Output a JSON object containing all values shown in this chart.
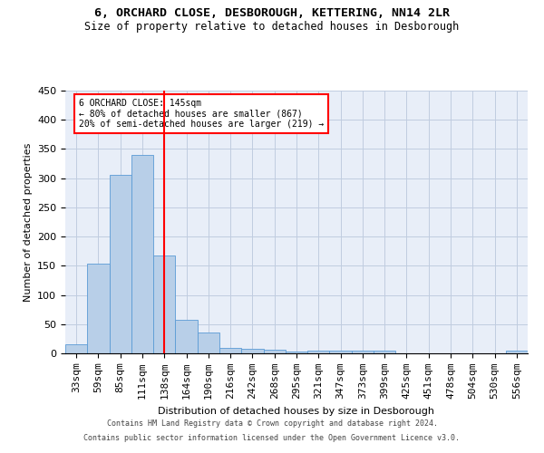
{
  "title1": "6, ORCHARD CLOSE, DESBOROUGH, KETTERING, NN14 2LR",
  "title2": "Size of property relative to detached houses in Desborough",
  "xlabel": "Distribution of detached houses by size in Desborough",
  "ylabel": "Number of detached properties",
  "footer1": "Contains HM Land Registry data © Crown copyright and database right 2024.",
  "footer2": "Contains public sector information licensed under the Open Government Licence v3.0.",
  "annotation_text": "6 ORCHARD CLOSE: 145sqm\n← 80% of detached houses are smaller (867)\n20% of semi-detached houses are larger (219) →",
  "bar_color": "#b8cfe8",
  "bar_edge_color": "#5b9bd5",
  "vline_color": "red",
  "bg_color": "#e8eef8",
  "categories": [
    "33sqm",
    "59sqm",
    "85sqm",
    "111sqm",
    "138sqm",
    "164sqm",
    "190sqm",
    "216sqm",
    "242sqm",
    "268sqm",
    "295sqm",
    "321sqm",
    "347sqm",
    "373sqm",
    "399sqm",
    "425sqm",
    "451sqm",
    "478sqm",
    "504sqm",
    "530sqm",
    "556sqm"
  ],
  "values": [
    15,
    153,
    305,
    340,
    167,
    57,
    35,
    10,
    8,
    6,
    3,
    5,
    5,
    5,
    5,
    0,
    0,
    0,
    0,
    0,
    5
  ],
  "ylim": [
    0,
    450
  ],
  "yticks": [
    0,
    50,
    100,
    150,
    200,
    250,
    300,
    350,
    400,
    450
  ],
  "vline_position": 4.0,
  "grid_color": "#c0cce0",
  "title1_fontsize": 9.5,
  "title2_fontsize": 8.5,
  "xlabel_fontsize": 8,
  "ylabel_fontsize": 8,
  "tick_fontsize": 8,
  "annotation_fontsize": 7,
  "footer_fontsize": 6
}
